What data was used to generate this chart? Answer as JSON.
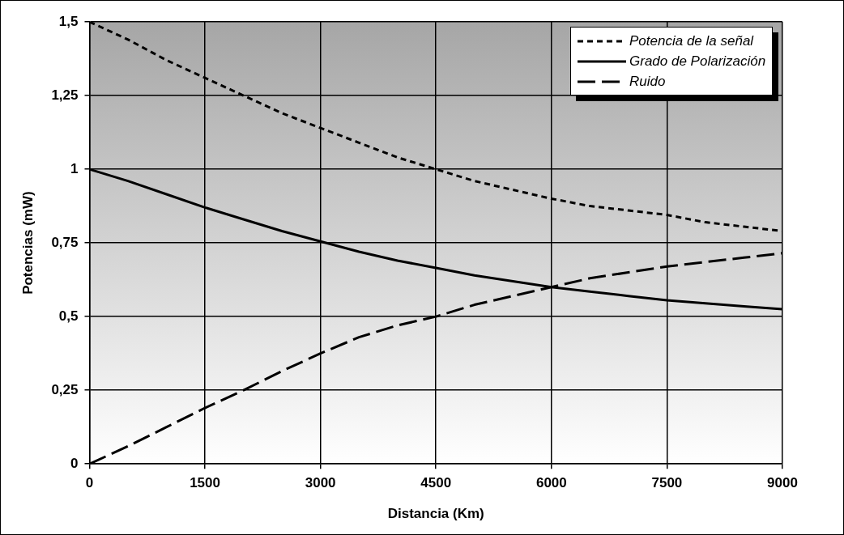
{
  "chart_data": {
    "type": "line",
    "xlabel": "Distancia (Km)",
    "ylabel": "Potencias (mW)",
    "x": [
      0,
      500,
      1000,
      1500,
      2000,
      2500,
      3000,
      3500,
      4000,
      4500,
      5000,
      5500,
      6000,
      6500,
      7000,
      7500,
      8000,
      8500,
      9000
    ],
    "series": [
      {
        "name": "Potencia de la señal",
        "color": "#000000",
        "line_style": "dotted",
        "values": [
          1.5,
          1.44,
          1.37,
          1.31,
          1.25,
          1.19,
          1.14,
          1.09,
          1.04,
          1.0,
          0.96,
          0.93,
          0.9,
          0.875,
          0.86,
          0.845,
          0.82,
          0.805,
          0.79
        ]
      },
      {
        "name": "Grado de Polarización",
        "color": "#000000",
        "line_style": "solid",
        "values": [
          1.0,
          0.96,
          0.915,
          0.87,
          0.83,
          0.79,
          0.755,
          0.72,
          0.69,
          0.665,
          0.64,
          0.62,
          0.6,
          0.585,
          0.57,
          0.555,
          0.545,
          0.535,
          0.525
        ]
      },
      {
        "name": "Ruido",
        "color": "#000000",
        "line_style": "dashed",
        "values": [
          0,
          0.06,
          0.125,
          0.19,
          0.25,
          0.315,
          0.375,
          0.43,
          0.47,
          0.5,
          0.54,
          0.57,
          0.6,
          0.63,
          0.65,
          0.67,
          0.685,
          0.7,
          0.715
        ]
      }
    ],
    "xlim": [
      0,
      9000
    ],
    "xticks": [
      0,
      1500,
      3000,
      4500,
      6000,
      7500,
      9000
    ],
    "ylim": [
      0,
      1.5
    ],
    "yticks": [
      0,
      {
        "value": 0.25,
        "label": "0,25"
      },
      {
        "value": 0.5,
        "label": "0,5"
      },
      {
        "value": 0.75,
        "label": "0,75"
      },
      1,
      {
        "value": 1.25,
        "label": "1,25"
      },
      {
        "value": 1.5,
        "label": "1,5"
      }
    ],
    "grid": true,
    "legend": "top right",
    "marker": "none"
  }
}
